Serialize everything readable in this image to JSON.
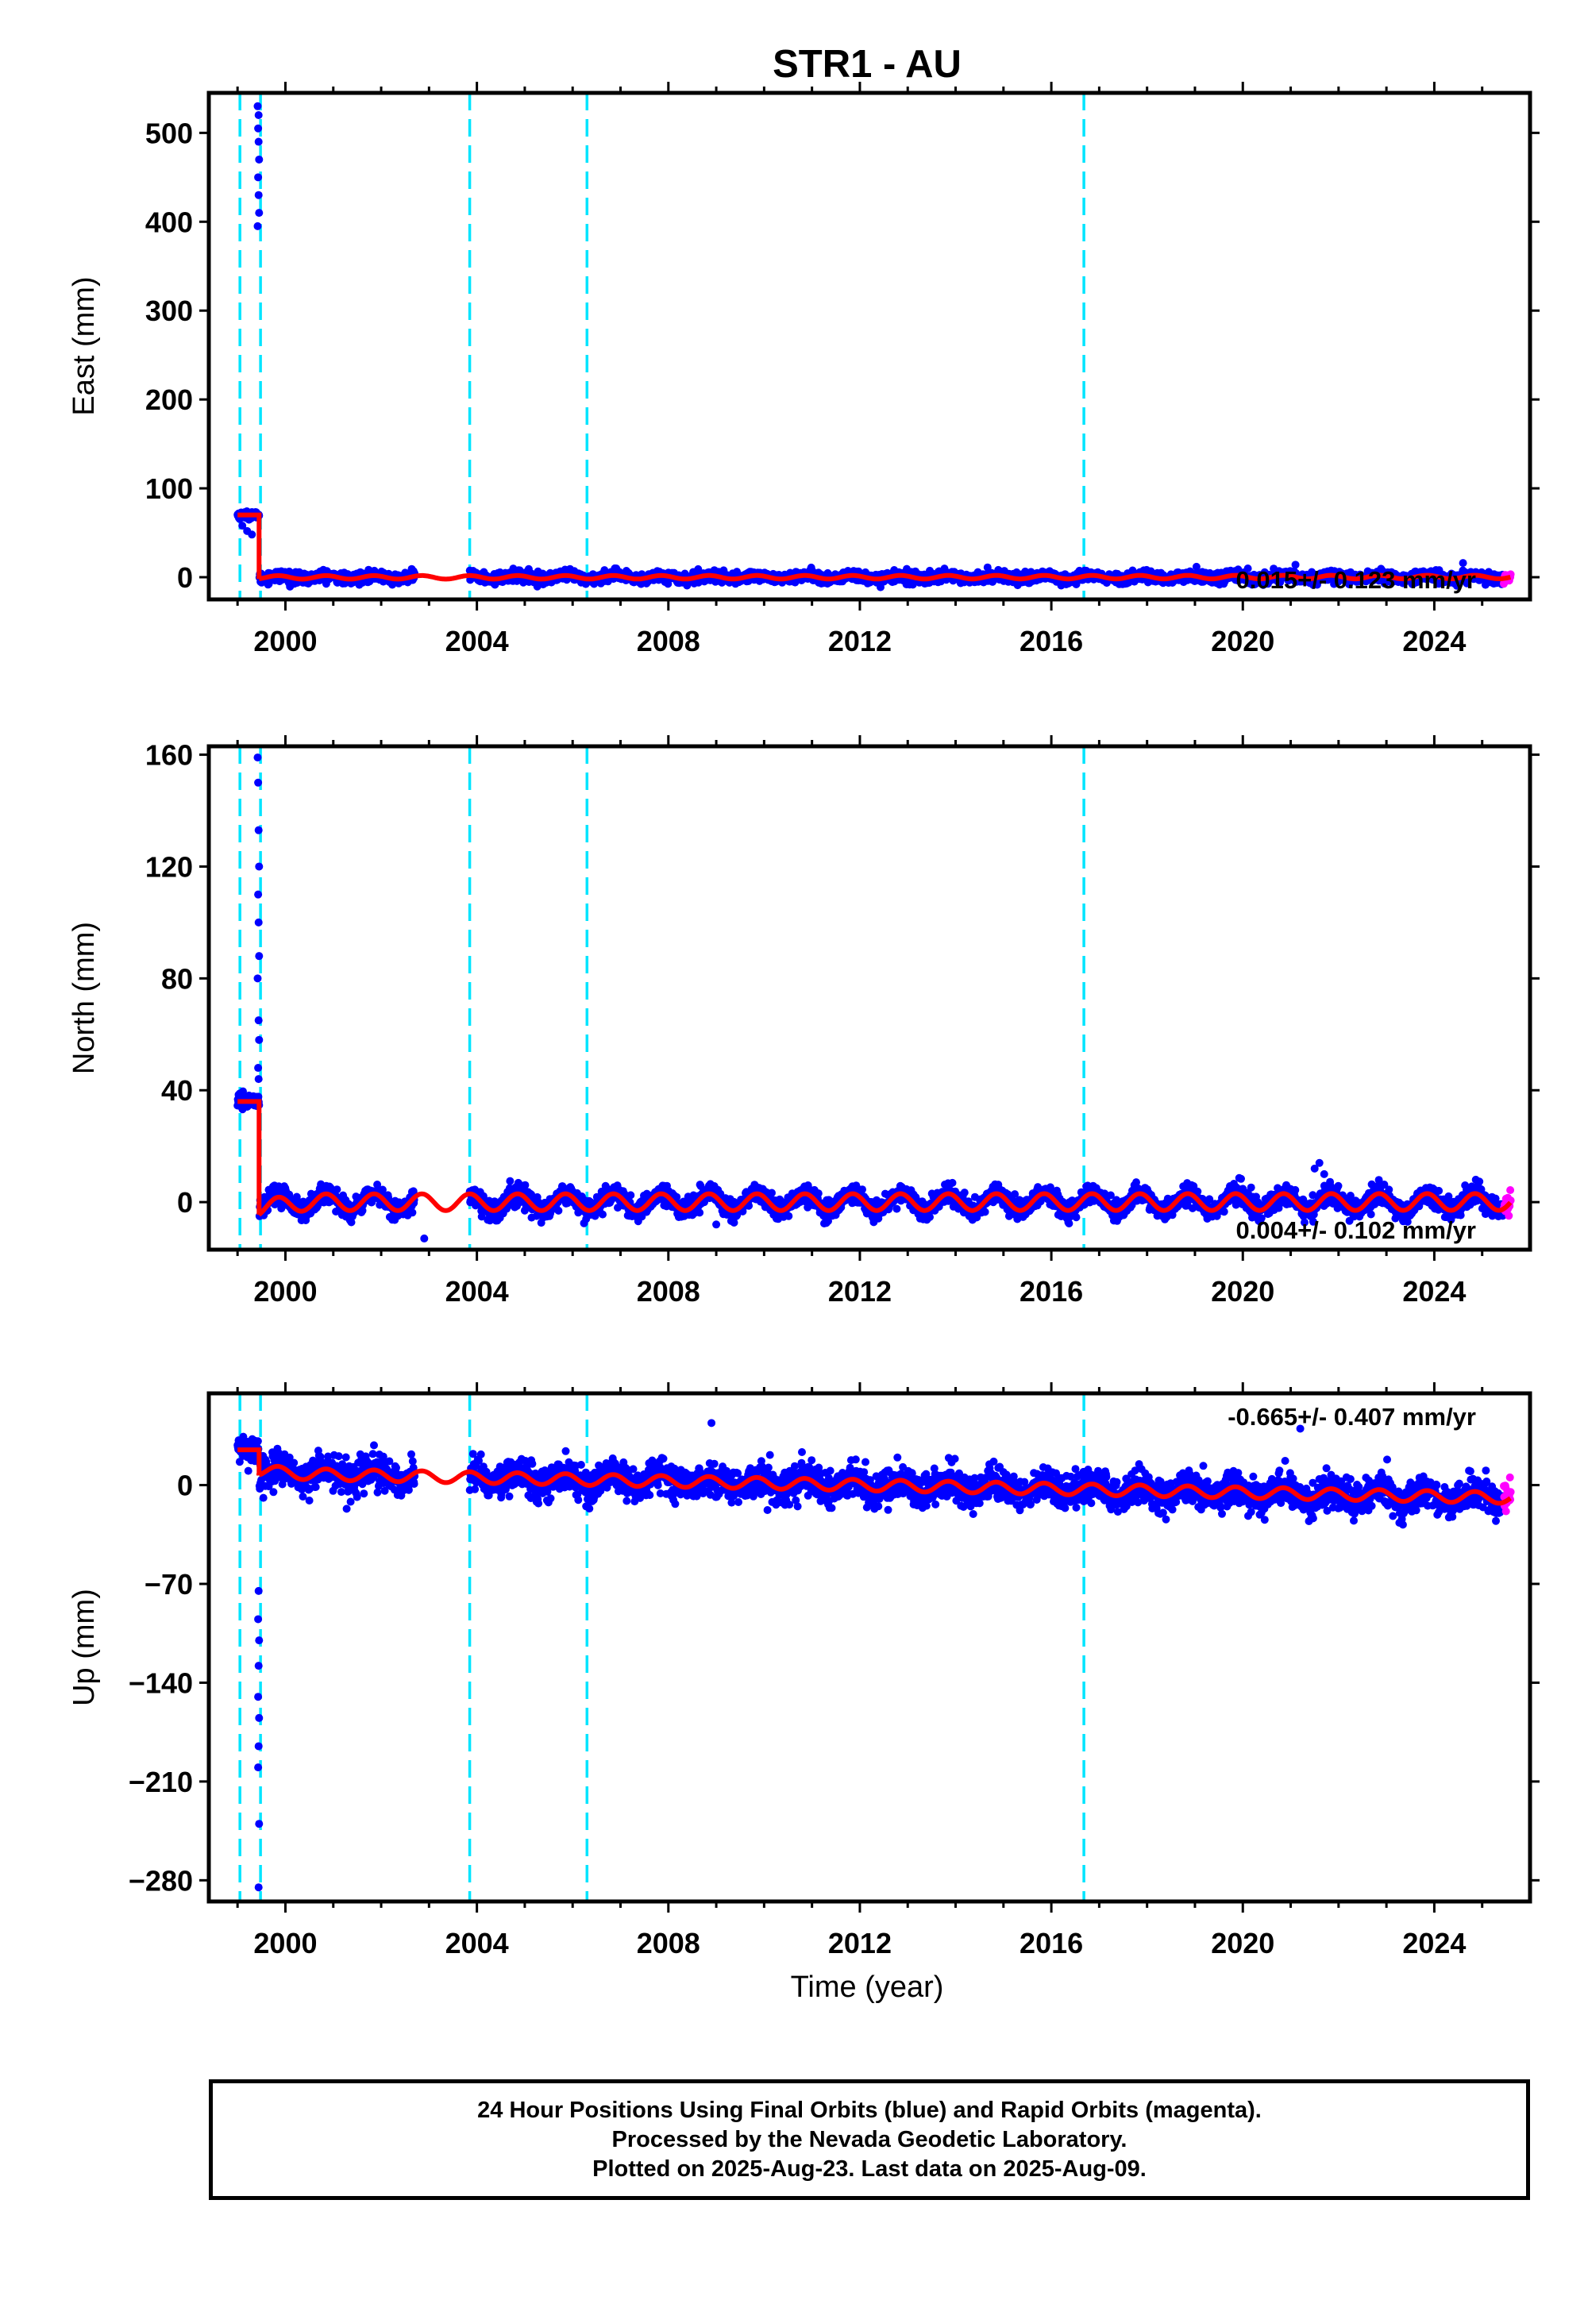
{
  "title": "STR1 - AU",
  "xlabel": "Time (year)",
  "colors": {
    "final_orbits": "#0000ff",
    "rapid_orbits": "#ff00ff",
    "model": "#ff0000",
    "event_lines": "#00e5ff",
    "frame": "#000000"
  },
  "x_ticks": [
    "2000",
    "2004",
    "2008",
    "2012",
    "2016",
    "2020",
    "2024"
  ],
  "event_lines_years": [
    1999.05,
    1999.48,
    2003.85,
    2006.3,
    2016.68
  ],
  "footer": {
    "line1": "24 Hour Positions Using Final Orbits (blue) and Rapid Orbits (magenta).",
    "line2": "Processed by the Nevada Geodetic Laboratory.",
    "line3": "Plotted on 2025-Aug-23. Last data on 2025-Aug-09."
  },
  "chart_data": [
    {
      "type": "scatter",
      "ylabel": "East (mm)",
      "rate_label": "0.015+/- 0.123 mm/yr",
      "xlim": [
        1998.4,
        2026.0
      ],
      "ylim": [
        -25,
        545
      ],
      "y_ticks": [
        0,
        100,
        200,
        300,
        400,
        500
      ],
      "trend_mm_per_yr": 0.015,
      "seasonal_amplitude_mm": 2,
      "noise_mm": 3,
      "data_span": [
        1999.0,
        2025.6
      ],
      "gap": [
        2002.7,
        2003.85
      ],
      "initial_segment": {
        "x": [
          1999.0,
          1999.45
        ],
        "y": 70,
        "offset_after": 0
      },
      "outliers": [
        {
          "x": 1999.42,
          "y": 530
        },
        {
          "x": 1999.43,
          "y": 505
        },
        {
          "x": 1999.44,
          "y": 490
        },
        {
          "x": 1999.45,
          "y": 470
        },
        {
          "x": 1999.43,
          "y": 450
        },
        {
          "x": 1999.44,
          "y": 430
        },
        {
          "x": 1999.45,
          "y": 410
        },
        {
          "x": 1999.42,
          "y": 395
        },
        {
          "x": 1999.44,
          "y": 520
        },
        {
          "x": 1999.1,
          "y": 58
        },
        {
          "x": 1999.2,
          "y": 52
        },
        {
          "x": 1999.3,
          "y": 48
        },
        {
          "x": 2021.1,
          "y": 14
        },
        {
          "x": 2024.6,
          "y": 16
        }
      ]
    },
    {
      "type": "scatter",
      "ylabel": "North (mm)",
      "rate_label": "0.004+/- 0.102 mm/yr",
      "xlim": [
        1998.4,
        2026.0
      ],
      "ylim": [
        -17,
        163
      ],
      "y_ticks": [
        0,
        40,
        80,
        120,
        160
      ],
      "trend_mm_per_yr": 0.004,
      "seasonal_amplitude_mm": 3,
      "noise_mm": 1.8,
      "data_span": [
        1999.0,
        2025.6
      ],
      "gap": [
        2002.7,
        2003.85
      ],
      "initial_segment": {
        "x": [
          1999.0,
          1999.45
        ],
        "y": 36,
        "offset_after": -2
      },
      "outliers": [
        {
          "x": 1999.42,
          "y": 159
        },
        {
          "x": 1999.43,
          "y": 150
        },
        {
          "x": 1999.44,
          "y": 133
        },
        {
          "x": 1999.45,
          "y": 120
        },
        {
          "x": 1999.43,
          "y": 110
        },
        {
          "x": 1999.44,
          "y": 100
        },
        {
          "x": 1999.45,
          "y": 88
        },
        {
          "x": 1999.42,
          "y": 80
        },
        {
          "x": 1999.44,
          "y": 65
        },
        {
          "x": 1999.45,
          "y": 58
        },
        {
          "x": 1999.43,
          "y": 48
        },
        {
          "x": 1999.44,
          "y": 44
        },
        {
          "x": 2002.9,
          "y": -13
        },
        {
          "x": 2009.0,
          "y": -8
        },
        {
          "x": 2021.5,
          "y": 12
        },
        {
          "x": 2021.6,
          "y": 14
        },
        {
          "x": 2021.7,
          "y": 10
        }
      ]
    },
    {
      "type": "scatter",
      "ylabel": "Up (mm)",
      "rate_label": "-0.665+/- 0.407 mm/yr",
      "xlim": [
        1998.4,
        2026.0
      ],
      "ylim": [
        -295,
        65
      ],
      "y_ticks": [
        0,
        -70,
        -140,
        -210,
        -280
      ],
      "trend_mm_per_yr": -0.665,
      "seasonal_amplitude_mm": 4,
      "noise_mm": 6,
      "data_span": [
        1999.0,
        2025.6
      ],
      "gap": [
        2002.7,
        2003.85
      ],
      "initial_segment": {
        "x": [
          1999.0,
          1999.45
        ],
        "y": 25,
        "offset_after": 2
      },
      "outliers": [
        {
          "x": 1999.44,
          "y": -75
        },
        {
          "x": 1999.43,
          "y": -95
        },
        {
          "x": 1999.45,
          "y": -110
        },
        {
          "x": 1999.44,
          "y": -128
        },
        {
          "x": 1999.43,
          "y": -150
        },
        {
          "x": 1999.45,
          "y": -165
        },
        {
          "x": 1999.44,
          "y": -185
        },
        {
          "x": 1999.43,
          "y": -200
        },
        {
          "x": 1999.45,
          "y": -240
        },
        {
          "x": 1999.44,
          "y": -285
        },
        {
          "x": 2008.9,
          "y": 44
        },
        {
          "x": 2021.2,
          "y": 40
        }
      ]
    }
  ]
}
